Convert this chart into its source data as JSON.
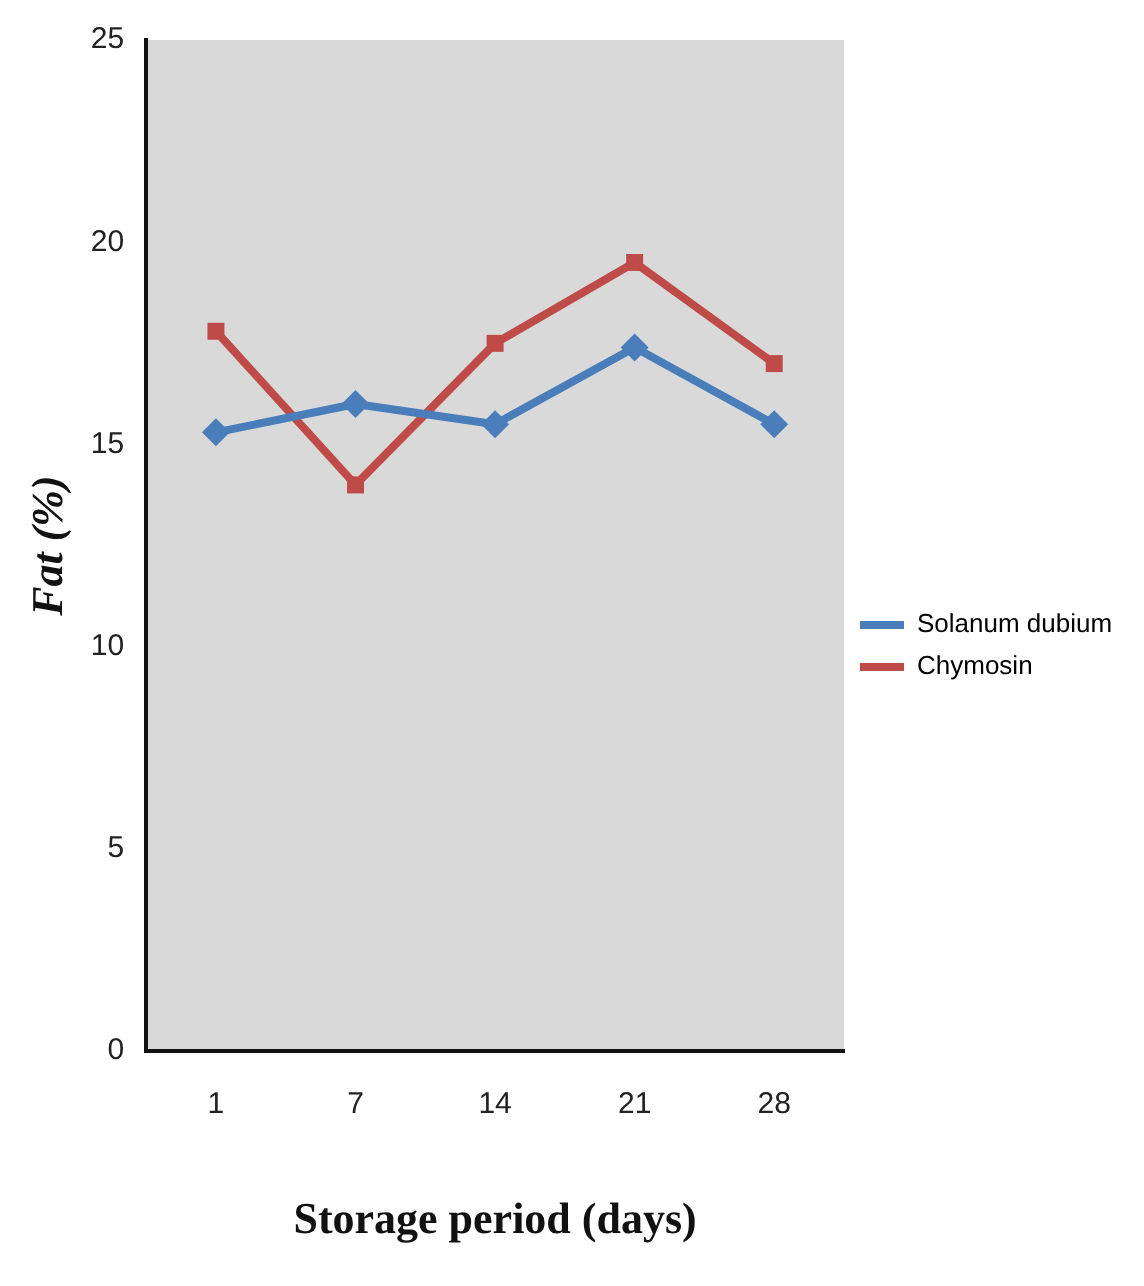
{
  "chart_data": {
    "type": "line",
    "xlabel": "Storage period (days)",
    "ylabel": "Fat (%)",
    "categories": [
      "1",
      "7",
      "14",
      "21",
      "28"
    ],
    "series": [
      {
        "name": "Solanum dubium",
        "color": "#4a7ebb",
        "marker": "diamond",
        "values": [
          15.3,
          16.0,
          15.5,
          17.4,
          15.5
        ]
      },
      {
        "name": "Chymosin",
        "color": "#be4b48",
        "marker": "square",
        "values": [
          17.8,
          14.0,
          17.5,
          19.5,
          17.0
        ]
      }
    ],
    "ylim": [
      0,
      25
    ],
    "yticks": [
      0,
      5,
      10,
      15,
      20,
      25
    ],
    "grid": false,
    "legend": "right",
    "line_style": "solid"
  }
}
